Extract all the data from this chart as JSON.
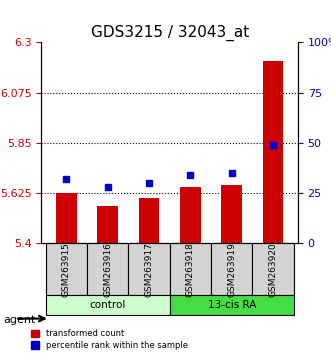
{
  "title": "GDS3215 / 32043_at",
  "samples": [
    "GSM263915",
    "GSM263916",
    "GSM263917",
    "GSM263918",
    "GSM263919",
    "GSM263920"
  ],
  "bar_values": [
    5.625,
    5.568,
    5.603,
    5.652,
    5.662,
    6.215
  ],
  "percentile_values": [
    32,
    28,
    30,
    34,
    35,
    49
  ],
  "ylim_left": [
    5.4,
    6.3
  ],
  "ylim_right": [
    0,
    100
  ],
  "left_ticks": [
    5.4,
    5.625,
    5.85,
    6.075,
    6.3
  ],
  "right_ticks": [
    0,
    25,
    50,
    75,
    100
  ],
  "right_tick_labels": [
    "0",
    "25",
    "50",
    "75",
    "100%"
  ],
  "gridlines": [
    5.625,
    5.85,
    6.075
  ],
  "bar_color": "#cc0000",
  "dot_color": "#0000cc",
  "groups": [
    {
      "label": "control",
      "indices": [
        0,
        1,
        2
      ],
      "color": "#ccffcc"
    },
    {
      "label": "13-cis RA",
      "indices": [
        3,
        4,
        5
      ],
      "color": "#44dd44"
    }
  ],
  "agent_label": "agent",
  "legend_items": [
    {
      "label": "transformed count",
      "color": "#cc0000"
    },
    {
      "label": "percentile rank within the sample",
      "color": "#0000cc"
    }
  ],
  "title_fontsize": 11,
  "axis_label_fontsize": 7.5,
  "tick_fontsize": 8
}
